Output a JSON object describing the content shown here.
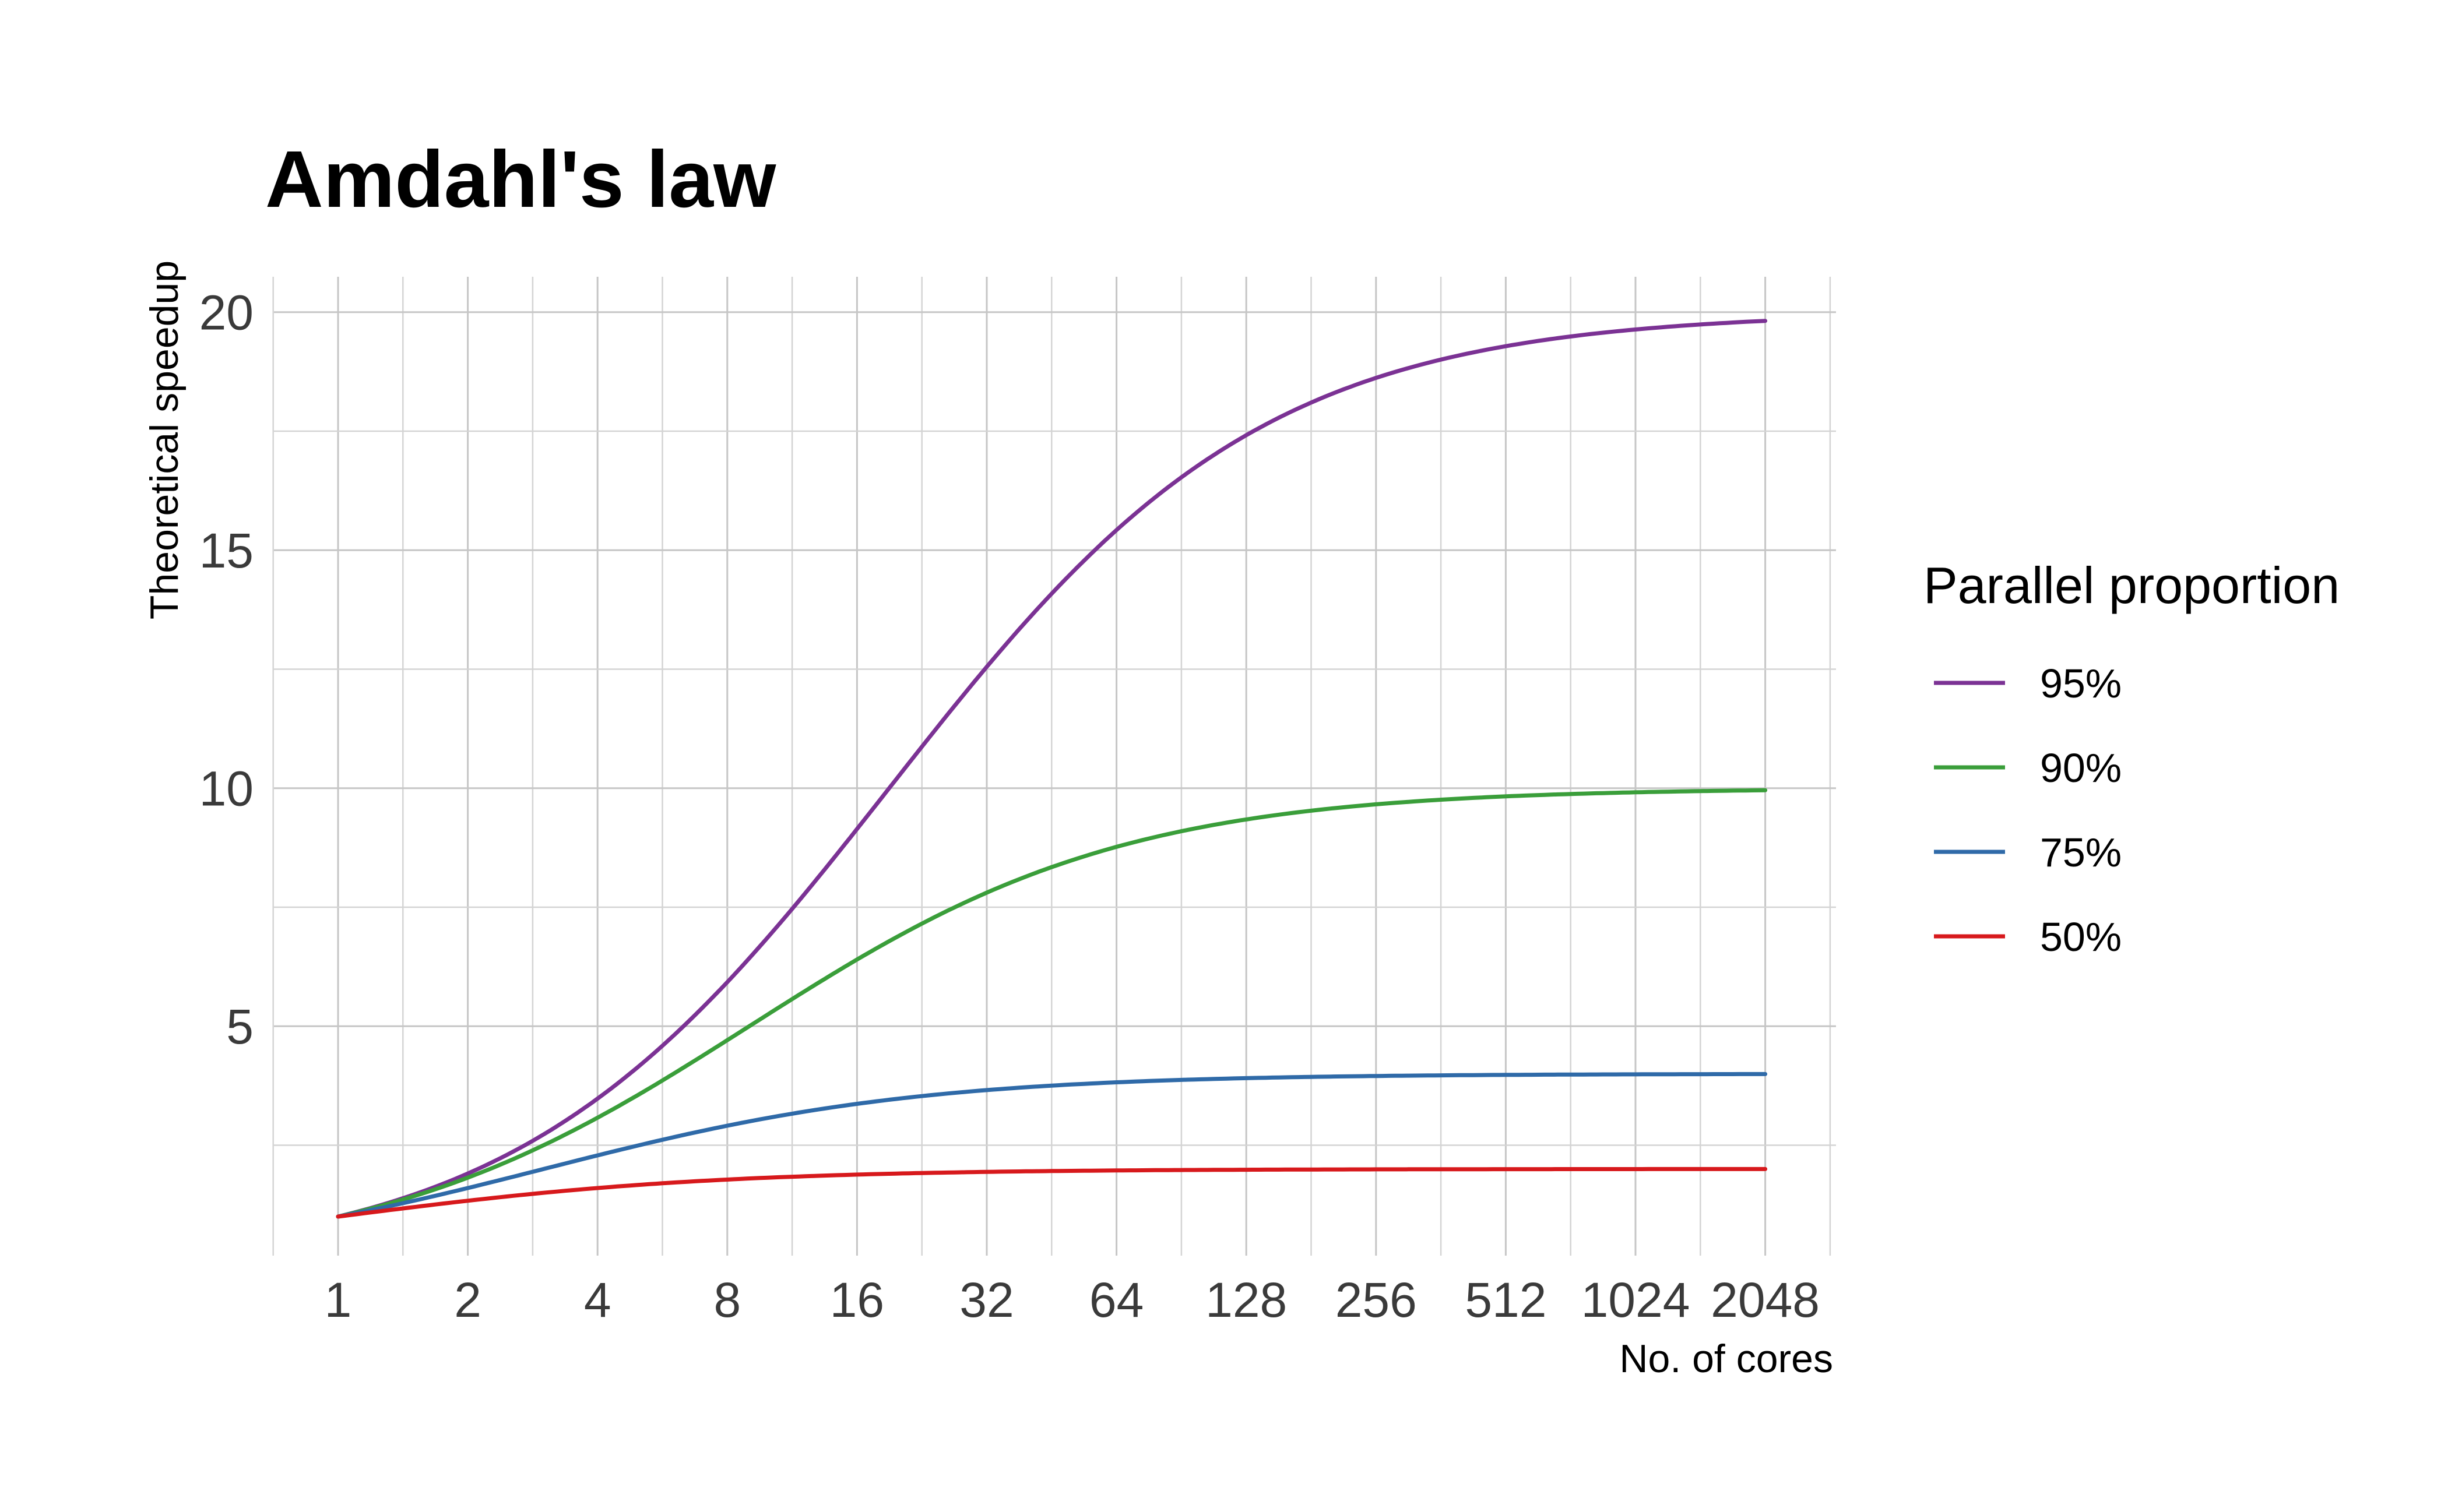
{
  "chart_data": {
    "type": "line",
    "title": "Amdahl's law",
    "xlabel": "No. of cores",
    "ylabel": "Theoretical speedup",
    "x_scale": "log2",
    "x_ticks": [
      1,
      2,
      4,
      8,
      16,
      32,
      64,
      128,
      256,
      512,
      1024,
      2048
    ],
    "x_tick_labels": [
      "1",
      "2",
      "4",
      "8",
      "16",
      "32",
      "64",
      "128",
      "256",
      "512",
      "1024",
      "2048"
    ],
    "xlim": [
      1,
      2048
    ],
    "y_ticks": [
      5,
      10,
      15,
      20
    ],
    "y_tick_labels": [
      "5",
      "10",
      "15",
      "20"
    ],
    "ylim": [
      1,
      20
    ],
    "grid": true,
    "legend": {
      "title": "Parallel proportion",
      "placement": "right"
    },
    "series": [
      {
        "name": "95%",
        "color": "#7b3294",
        "proportion": 0.95,
        "x": [
          1,
          2,
          4,
          8,
          16,
          32,
          64,
          128,
          256,
          512,
          1024,
          2048
        ],
        "values": [
          1.0,
          1.9,
          3.48,
          5.93,
          9.14,
          12.55,
          15.42,
          17.41,
          18.6,
          19.28,
          19.63,
          19.82
        ]
      },
      {
        "name": "90%",
        "color": "#3a9e3a",
        "proportion": 0.9,
        "x": [
          1,
          2,
          4,
          8,
          16,
          32,
          64,
          128,
          256,
          512,
          1024,
          2048
        ],
        "values": [
          1.0,
          1.82,
          3.08,
          4.71,
          6.4,
          7.8,
          8.77,
          9.34,
          9.66,
          9.83,
          9.91,
          9.96
        ]
      },
      {
        "name": "75%",
        "color": "#2f6aa8",
        "proportion": 0.75,
        "x": [
          1,
          2,
          4,
          8,
          16,
          32,
          64,
          128,
          256,
          512,
          1024,
          2048
        ],
        "values": [
          1.0,
          1.6,
          2.29,
          2.91,
          3.37,
          3.66,
          3.82,
          3.91,
          3.95,
          3.98,
          3.99,
          3.99
        ]
      },
      {
        "name": "50%",
        "color": "#d7191c",
        "proportion": 0.5,
        "x": [
          1,
          2,
          4,
          8,
          16,
          32,
          64,
          128,
          256,
          512,
          1024,
          2048
        ],
        "values": [
          1.0,
          1.33,
          1.6,
          1.78,
          1.88,
          1.94,
          1.97,
          1.98,
          1.99,
          2.0,
          2.0,
          2.0
        ]
      }
    ]
  }
}
